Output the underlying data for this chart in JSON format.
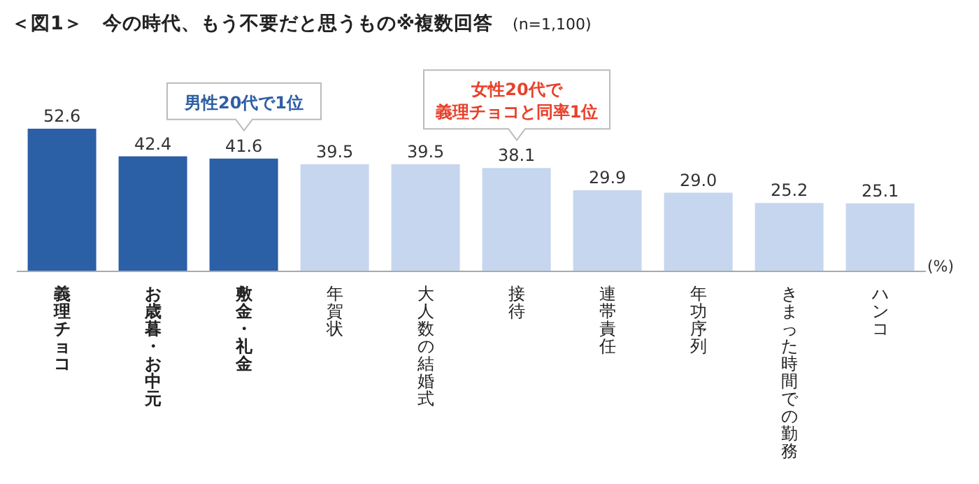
{
  "chart_data": {
    "type": "bar",
    "title": "＜図1＞　今の時代、もう不要だと思うもの※複数回答",
    "subtitle": "(n=1,100)",
    "ylabel": "(%)",
    "categories": [
      "義理チョコ",
      "お歳暮・お中元",
      "敷金・礼金",
      "年賀状",
      "大人数の結婚式",
      "接待",
      "連帯責任",
      "年功序列",
      "きまった時間での勤務",
      "ハンコ"
    ],
    "values": [
      52.6,
      42.4,
      41.6,
      39.5,
      39.5,
      38.1,
      29.9,
      29.0,
      25.2,
      25.1
    ],
    "value_labels": [
      "52.6",
      "42.4",
      "41.6",
      "39.5",
      "39.5",
      "38.1",
      "29.9",
      "29.0",
      "25.2",
      "25.1"
    ],
    "colors": [
      "#2b5fa6",
      "#2b5fa6",
      "#2b5fa6",
      "#c6d6ee",
      "#c6d6ee",
      "#c6d6ee",
      "#c6d6ee",
      "#c6d6ee",
      "#c6d6ee",
      "#c6d6ee"
    ],
    "annotations": [
      {
        "text": "男性20代で1位",
        "x": "敷金・礼金",
        "y": 41.6
      },
      {
        "text": "女性20代で義理チョコと同率1位",
        "x": "接待",
        "y": 38.1
      }
    ]
  }
}
